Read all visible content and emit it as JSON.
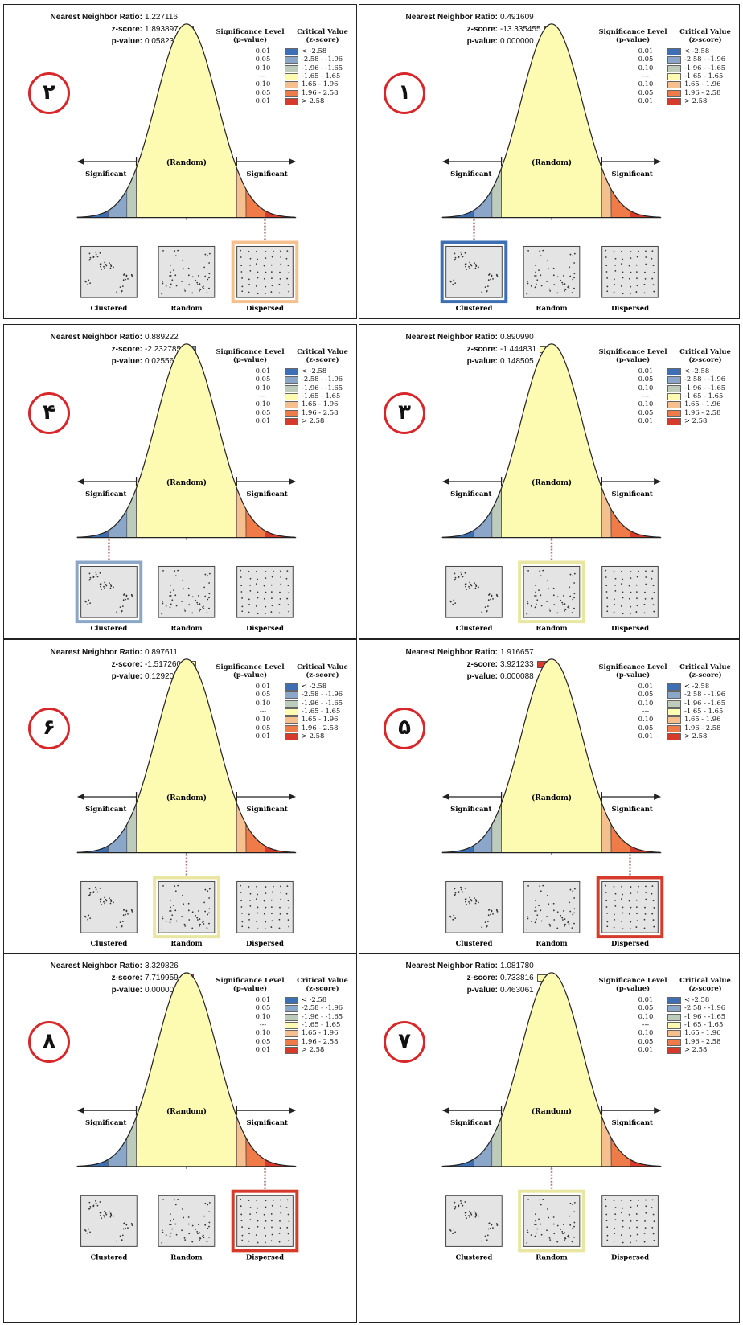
{
  "colors": {
    "curve_fill": "#fdfab2",
    "tail_lvl_neg3": "#3d6fb4",
    "tail_lvl_neg2": "#8aa6c9",
    "tail_lvl_neg1": "#bccbba",
    "tail_lvl_pos1": "#f6c08e",
    "tail_lvl_pos2": "#ee7b48",
    "tail_lvl_pos3": "#d63a2b",
    "badge_ring": "#d8272b"
  },
  "labels": {
    "stat_ratio": "Nearest Neighbor Ratio:",
    "stat_z": "z-score:",
    "stat_p": "p-value:",
    "legend_header_sig": "Significance Level\n(p-value)",
    "legend_header_crit": "Critical Value\n(z-score)",
    "legend_rows": [
      {
        "p": "0.01",
        "crit": "< -2.58",
        "color": "#3d6fb4"
      },
      {
        "p": "0.05",
        "crit": "-2.58 - -1.96",
        "color": "#8aa6c9"
      },
      {
        "p": "0.10",
        "crit": "-1.96 - -1.65",
        "color": "#bccbba"
      },
      {
        "p": "---",
        "crit": "-1.65 - 1.65",
        "color": "#fdfab2"
      },
      {
        "p": "0.10",
        "crit": "1.65 - 1.96",
        "color": "#f6c08e"
      },
      {
        "p": "0.05",
        "crit": "1.96 - 2.58",
        "color": "#ee7b48"
      },
      {
        "p": "0.01",
        "crit": "> 2.58",
        "color": "#d63a2b"
      }
    ],
    "random": "(Random)",
    "significant": "Significant",
    "pattern_names": [
      "Clustered",
      "Random",
      "Dispersed"
    ]
  },
  "chart_data": [
    {
      "type": "normal-curve",
      "panel_number": "۲",
      "nearest_neighbor_ratio": "1.227116",
      "z_score": "1.893897",
      "p_value": "0.058239",
      "highlighted": "Dispersed",
      "z_color": "#f6c08e"
    },
    {
      "type": "normal-curve",
      "panel_number": "۱",
      "nearest_neighbor_ratio": "0.491609",
      "z_score": "-13.335455",
      "p_value": "0.000000",
      "highlighted": "Clustered",
      "z_color": "#3d6fb4"
    },
    {
      "type": "normal-curve",
      "panel_number": "۴",
      "nearest_neighbor_ratio": "0.889222",
      "z_score": "-2.232785",
      "p_value": "0.025563",
      "highlighted": "Clustered",
      "z_color": "#8aa6c9"
    },
    {
      "type": "normal-curve",
      "panel_number": "۳",
      "nearest_neighbor_ratio": "0.890990",
      "z_score": "-1.444831",
      "p_value": "0.148505",
      "highlighted": "Random",
      "z_color": "#fdfab2"
    },
    {
      "type": "normal-curve",
      "panel_number": "۶",
      "nearest_neighbor_ratio": "0.897611",
      "z_score": "-1.517260",
      "p_value": "0.129201",
      "highlighted": "Random",
      "z_color": "#fdfab2"
    },
    {
      "type": "normal-curve",
      "panel_number": "۵",
      "nearest_neighbor_ratio": "1.916657",
      "z_score": "3.921233",
      "p_value": "0.000088",
      "highlighted": "Dispersed",
      "z_color": "#d63a2b"
    },
    {
      "type": "normal-curve",
      "panel_number": "۸",
      "nearest_neighbor_ratio": "3.329826",
      "z_score": "7.719959",
      "p_value": "0.000000",
      "highlighted": "Dispersed",
      "z_color": "#d63a2b"
    },
    {
      "type": "normal-curve",
      "panel_number": "۷",
      "nearest_neighbor_ratio": "1.081780",
      "z_score": "0.733816",
      "p_value": "0.463061",
      "highlighted": "Random",
      "z_color": "#fdfab2"
    }
  ]
}
